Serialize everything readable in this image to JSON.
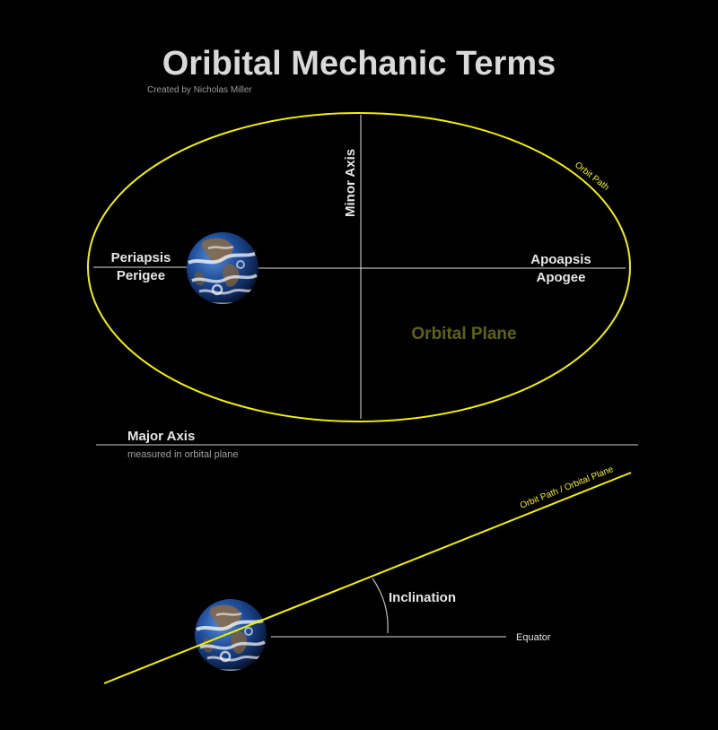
{
  "title": "Oribital Mechanic Terms",
  "credit": "Created by Nicholas Miller",
  "colors": {
    "background": "#000000",
    "orbit": "#f2f200",
    "axis_lines": "#e0e0e0",
    "orbital_plane_text": "#5e6314"
  },
  "top_diagram": {
    "orbit_path_label": "Orbit Path",
    "minor_axis_label": "Minor Axis",
    "periapsis_label": "Periapsis",
    "perigee_label": "Perigee",
    "apoapsis_label": "Apoapsis",
    "apogee_label": "Apogee",
    "orbital_plane_label": "Orbital Plane",
    "major_axis_label": "Major Axis",
    "major_axis_note": "measured in orbital plane",
    "earth_icon": "earth-icon"
  },
  "bottom_diagram": {
    "orbit_plane_label": "Orbit Path / Orbital Plane",
    "inclination_label": "Inclination",
    "equator_label": "Equator",
    "earth_icon": "earth-icon"
  }
}
